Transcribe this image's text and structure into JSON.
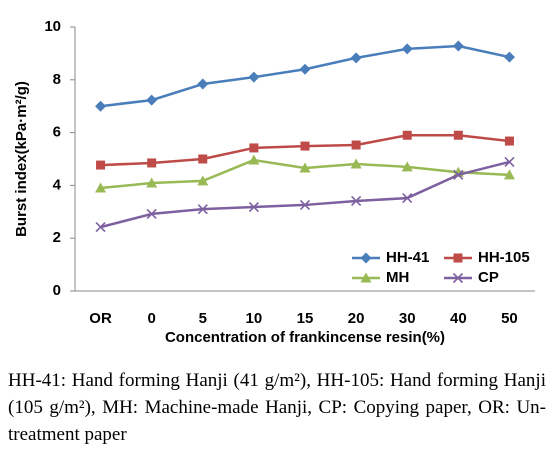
{
  "chart_data": {
    "type": "line",
    "y_label": "Burst index(kPa·m²/g)",
    "x_label": "Concentration of frankincense resin(%)",
    "categories": [
      "OR",
      "0",
      "5",
      "10",
      "15",
      "20",
      "30",
      "40",
      "50"
    ],
    "series": [
      {
        "name": "HH-41",
        "color": "#4a7ebb",
        "marker": "diamond",
        "values": [
          7.0,
          7.23,
          7.84,
          8.1,
          8.4,
          8.83,
          9.17,
          9.28,
          8.86
        ]
      },
      {
        "name": "HH-105",
        "color": "#be4b48",
        "marker": "square",
        "values": [
          4.77,
          4.85,
          5.0,
          5.42,
          5.49,
          5.53,
          5.9,
          5.9,
          5.68
        ]
      },
      {
        "name": "MH",
        "color": "#98b954",
        "marker": "triangle",
        "values": [
          3.9,
          4.09,
          4.17,
          4.96,
          4.66,
          4.81,
          4.7,
          4.5,
          4.4
        ]
      },
      {
        "name": "CP",
        "color": "#7d60a0",
        "marker": "x",
        "values": [
          2.42,
          2.92,
          3.1,
          3.18,
          3.26,
          3.41,
          3.52,
          4.4,
          4.89
        ]
      }
    ],
    "ylim": [
      0,
      10
    ],
    "yticks": [
      0,
      2,
      4,
      6,
      8,
      10
    ],
    "grid": false,
    "legend": "lower right"
  },
  "caption": "HH-41: Hand forming Hanji (41 g/m²), HH-105: Hand forming Hanji (105 g/m²), MH: Machine-made Hanji, CP: Copying paper, OR: Un-treatment paper"
}
